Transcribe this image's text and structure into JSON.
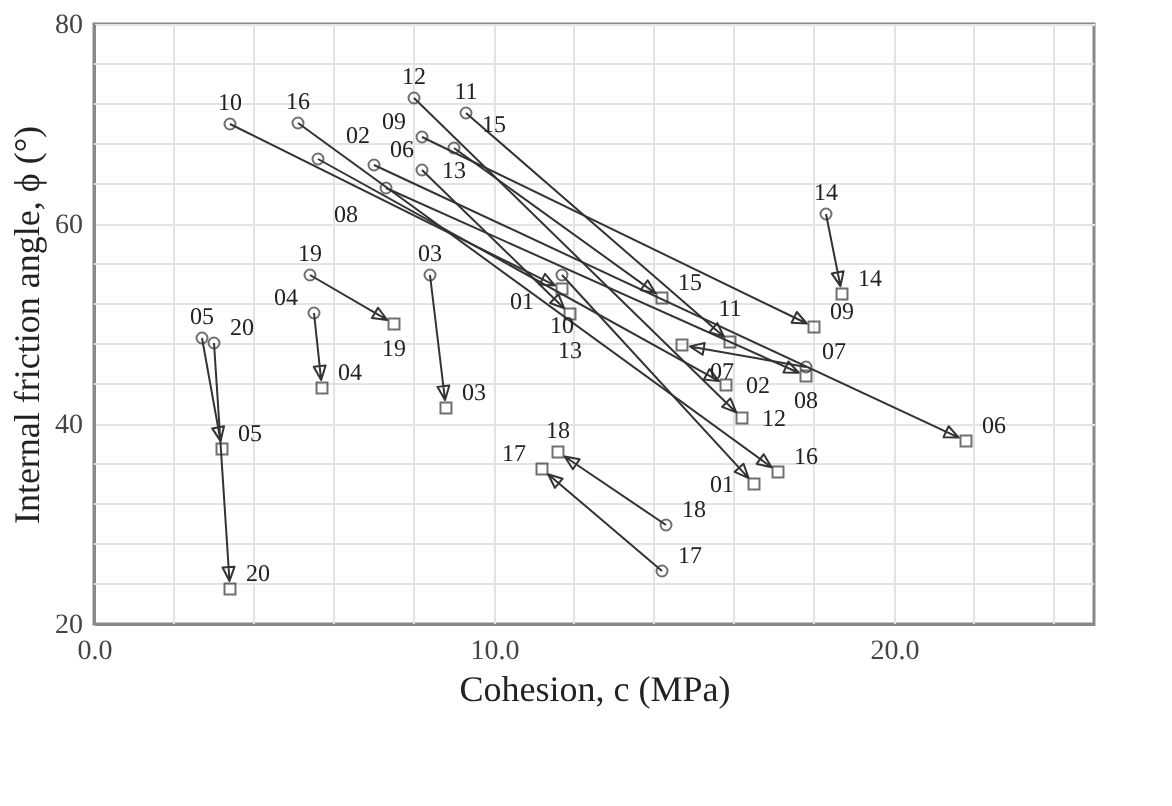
{
  "chart_data": {
    "type": "scatter",
    "xlabel": "Cohesion, c (MPa)",
    "ylabel": "Internal friction angle, ϕ (°)",
    "xlim": [
      0,
      25
    ],
    "ylim": [
      20,
      80
    ],
    "xticks": [
      {
        "value": 0,
        "label": "0.0"
      },
      {
        "value": 2,
        "label": null
      },
      {
        "value": 4,
        "label": null
      },
      {
        "value": 6,
        "label": null
      },
      {
        "value": 8,
        "label": null
      },
      {
        "value": 10,
        "label": "10.0"
      },
      {
        "value": 12,
        "label": null
      },
      {
        "value": 14,
        "label": null
      },
      {
        "value": 16,
        "label": null
      },
      {
        "value": 18,
        "label": null
      },
      {
        "value": 20,
        "label": "20.0"
      },
      {
        "value": 22,
        "label": null
      },
      {
        "value": 24,
        "label": null
      }
    ],
    "yticks": [
      20,
      {
        "value": 24,
        "label": null
      },
      {
        "value": 28,
        "label": null
      },
      {
        "value": 32,
        "label": null
      },
      {
        "value": 36,
        "label": null
      },
      40,
      {
        "value": 44,
        "label": null
      },
      {
        "value": 48,
        "label": null
      },
      {
        "value": 52,
        "label": null
      },
      {
        "value": 56,
        "label": null
      },
      60,
      {
        "value": 64,
        "label": null
      },
      {
        "value": 68,
        "label": null
      },
      {
        "value": 72,
        "label": null
      },
      {
        "value": 76,
        "label": null
      },
      80
    ],
    "grid": true,
    "series": [
      {
        "marker": "circle",
        "color": "#333333",
        "x": [
          11.7,
          5.6,
          8.4,
          5.5,
          2.7,
          7.0,
          17.8,
          7.3,
          8.2,
          3.4,
          9.3,
          8.0,
          8.2,
          18.3,
          9.0,
          5.1,
          14.2,
          14.3,
          5.4,
          3.0
        ],
        "values": [
          54.9,
          66.5,
          54.9,
          51.1,
          48.6,
          65.9,
          45.7,
          63.6,
          68.7,
          70.0,
          71.1,
          72.6,
          65.4,
          61.0,
          67.6,
          70.1,
          25.3,
          29.9,
          54.9,
          48.1
        ]
      },
      {
        "marker": "square",
        "color": "#333333",
        "x": [
          16.5,
          15.8,
          8.8,
          5.7,
          3.2,
          21.8,
          14.7,
          17.8,
          18.0,
          11.7,
          15.9,
          16.2,
          11.9,
          18.7,
          14.2,
          17.1,
          11.2,
          11.6,
          7.5,
          3.4
        ],
        "values": [
          34.0,
          43.9,
          41.6,
          43.6,
          37.5,
          38.3,
          47.9,
          44.8,
          49.7,
          53.5,
          48.2,
          40.6,
          51.0,
          53.0,
          52.6,
          35.2,
          35.5,
          37.2,
          50.0,
          23.5
        ]
      }
    ],
    "annotations": [
      {
        "text": "01",
        "x": 11.7,
        "y": 54.9
      },
      {
        "text": "02",
        "x": 5.6,
        "y": 66.5
      },
      {
        "text": "03",
        "x": 8.4,
        "y": 54.9
      },
      {
        "text": "04",
        "x": 5.5,
        "y": 51.1
      },
      {
        "text": "05",
        "x": 2.7,
        "y": 48.6
      },
      {
        "text": "06",
        "x": 7.0,
        "y": 65.9
      },
      {
        "text": "07",
        "x": 17.8,
        "y": 45.7
      },
      {
        "text": "08",
        "x": 7.3,
        "y": 63.6
      },
      {
        "text": "09",
        "x": 8.2,
        "y": 68.7
      },
      {
        "text": "10",
        "x": 3.4,
        "y": 70.0
      },
      {
        "text": "11",
        "x": 9.3,
        "y": 71.1
      },
      {
        "text": "12",
        "x": 8.0,
        "y": 72.6
      },
      {
        "text": "13",
        "x": 8.2,
        "y": 65.4
      },
      {
        "text": "14",
        "x": 18.3,
        "y": 61.0
      },
      {
        "text": "15",
        "x": 9.0,
        "y": 67.6
      },
      {
        "text": "16",
        "x": 5.1,
        "y": 70.1
      },
      {
        "text": "17",
        "x": 14.2,
        "y": 25.3
      },
      {
        "text": "18",
        "x": 14.3,
        "y": 29.9
      },
      {
        "text": "19",
        "x": 5.4,
        "y": 54.9
      },
      {
        "text": "20",
        "x": 3.0,
        "y": 48.1
      },
      {
        "text": "01",
        "x": 16.5,
        "y": 34.0
      },
      {
        "text": "02",
        "x": 15.8,
        "y": 43.9
      },
      {
        "text": "03",
        "x": 8.8,
        "y": 41.6
      },
      {
        "text": "04",
        "x": 5.7,
        "y": 43.6
      },
      {
        "text": "05",
        "x": 3.2,
        "y": 37.5
      },
      {
        "text": "06",
        "x": 21.8,
        "y": 38.3
      },
      {
        "text": "07",
        "x": 14.7,
        "y": 47.9
      },
      {
        "text": "08",
        "x": 17.8,
        "y": 44.8
      },
      {
        "text": "09",
        "x": 18.0,
        "y": 49.7
      },
      {
        "text": "10",
        "x": 11.7,
        "y": 53.5
      },
      {
        "text": "11",
        "x": 15.9,
        "y": 48.2
      },
      {
        "text": "12",
        "x": 16.2,
        "y": 40.6
      },
      {
        "text": "13",
        "x": 11.9,
        "y": 51.0
      },
      {
        "text": "14",
        "x": 18.7,
        "y": 53.0
      },
      {
        "text": "15",
        "x": 14.2,
        "y": 52.6
      },
      {
        "text": "16",
        "x": 17.1,
        "y": 35.2
      },
      {
        "text": "17",
        "x": 11.2,
        "y": 35.5
      },
      {
        "text": "18",
        "x": 11.6,
        "y": 37.2
      },
      {
        "text": "19",
        "x": 7.5,
        "y": 50.0
      },
      {
        "text": "20",
        "x": 3.4,
        "y": 23.5
      }
    ]
  }
}
